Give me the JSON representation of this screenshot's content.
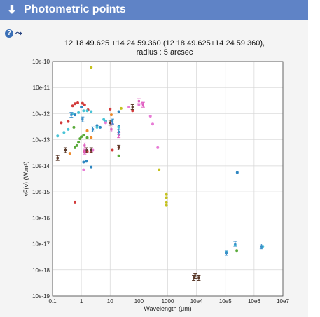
{
  "header": {
    "title": "Photometric points",
    "arrow_icon": "down-arrow-icon"
  },
  "toolbar": {
    "help_icon": "help-icon",
    "graph_icon": "graph-settings-icon"
  },
  "plot": {
    "title_line1": "12 18 49.625 +14 24 59.360 (12 18 49.625+14 24 59.360),",
    "title_line2": "radius : 5 arcsec"
  },
  "chart_data": {
    "type": "scatter",
    "xlabel": "Wavelength (μm)",
    "ylabel": "νF(ν) (W.m²)",
    "x_scale": "log",
    "y_scale": "log",
    "xlim": [
      0.1,
      10000000
    ],
    "ylim": [
      1e-19,
      1e-10
    ],
    "x_tick_labels": [
      "0.1",
      "1",
      "10",
      "100",
      "1000",
      "10e4",
      "10e5",
      "10e6",
      "10e7"
    ],
    "y_tick_labels": [
      "10e-10",
      "10e-11",
      "10e-12",
      "10e-13",
      "10e-14",
      "10e-15",
      "10e-16",
      "10e-17",
      "10e-18",
      "10e-19"
    ],
    "grid": true,
    "series": [
      {
        "color": "#d23b3b",
        "marker": "circle",
        "points": [
          [
            0.2,
            4.5e-13
          ],
          [
            0.35,
            5e-13
          ],
          [
            0.5,
            2e-12
          ],
          [
            0.6,
            2.4e-12
          ],
          [
            0.75,
            2.6e-12
          ],
          [
            0.6,
            4e-16
          ],
          [
            1.1,
            2.5e-12
          ],
          [
            1.3,
            2.2e-12
          ],
          [
            1.7,
            1.4e-12
          ],
          [
            1.3,
            3.5e-14
          ],
          [
            1.6,
            3.5e-14
          ],
          [
            2.2,
            3.5e-14
          ],
          [
            10,
            1.5e-12
          ],
          [
            12,
            4e-14
          ],
          [
            20,
            5e-14
          ],
          [
            60,
            1.3e-12
          ]
        ]
      },
      {
        "color": "#2e86c1",
        "marker": "circle",
        "points": [
          [
            0.6,
            9e-13
          ],
          [
            1.0,
            1.8e-12
          ],
          [
            1.2,
            1.4e-14
          ],
          [
            1.5,
            1.5e-14
          ],
          [
            2.2,
            9e-15
          ],
          [
            3.5,
            3.5e-13
          ],
          [
            4.5,
            3e-13
          ],
          [
            7,
            5.2e-13
          ],
          [
            20,
            3.2e-13
          ],
          [
            20,
            1.2e-12
          ],
          [
            260000,
            5.5e-15
          ]
        ]
      },
      {
        "color": "#48c3d6",
        "marker": "circle",
        "points": [
          [
            0.15,
            1.4e-13
          ],
          [
            0.25,
            1.9e-13
          ],
          [
            0.35,
            2.5e-13
          ],
          [
            0.5,
            1e-12
          ],
          [
            0.8,
            1.1e-12
          ],
          [
            1.2,
            1.3e-12
          ],
          [
            1.6,
            1.3e-12
          ],
          [
            2.2,
            1.2e-12
          ],
          [
            3.5,
            3e-13
          ],
          [
            6,
            6e-13
          ],
          [
            7,
            5e-13
          ],
          [
            20,
            3e-13
          ],
          [
            110000,
            5e-18
          ],
          [
            220000,
            9e-18
          ],
          [
            2000000,
            8e-18
          ]
        ]
      },
      {
        "color": "#5aaa3a",
        "marker": "circle",
        "points": [
          [
            0.55,
            3e-13
          ],
          [
            0.6,
            5e-14
          ],
          [
            0.7,
            6e-14
          ],
          [
            0.8,
            8e-14
          ],
          [
            0.9,
            1.1e-13
          ],
          [
            1.0,
            1.3e-13
          ],
          [
            1.2,
            1.5e-13
          ],
          [
            1.6,
            1.2e-13
          ],
          [
            20,
            2.4e-14
          ],
          [
            250000,
            5.5e-18
          ]
        ]
      },
      {
        "color": "#e87bd6",
        "marker": "circle",
        "points": [
          [
            1.2,
            7e-15
          ],
          [
            2.2,
            4e-14
          ],
          [
            2.5,
            4e-14
          ],
          [
            7,
            4.5e-13
          ],
          [
            12,
            4e-13
          ],
          [
            45,
            1.8e-12
          ],
          [
            100,
            2.2e-12
          ],
          [
            130,
            2.5e-12
          ],
          [
            250,
            8e-13
          ],
          [
            300,
            4e-13
          ],
          [
            450,
            5e-14
          ]
        ]
      },
      {
        "color": "#c5c21e",
        "marker": "circle",
        "points": [
          [
            2.2,
            6e-11
          ],
          [
            500,
            7e-15
          ],
          [
            900,
            8e-16
          ],
          [
            900,
            6e-16
          ],
          [
            900,
            4e-16
          ],
          [
            900,
            3e-16
          ],
          [
            24,
            1.6e-12
          ]
        ]
      },
      {
        "color": "#ee8a2c",
        "marker": "circle",
        "points": [
          [
            0.4,
            3e-14
          ],
          [
            1.6,
            2.2e-13
          ],
          [
            2.2,
            1.2e-13
          ],
          [
            11,
            9e-13
          ]
        ]
      },
      {
        "color": "#5a3a2a",
        "marker": "errorbar",
        "points": [
          [
            0.15,
            2e-14
          ],
          [
            0.28,
            4e-14
          ],
          [
            1.5,
            4e-14
          ],
          [
            2.2,
            4e-14
          ],
          [
            10,
            4.5e-13
          ],
          [
            20,
            5e-14
          ],
          [
            60,
            1.8e-12
          ],
          [
            8000,
            5e-19
          ],
          [
            9000,
            6e-19
          ],
          [
            12000,
            5e-19
          ]
        ]
      },
      {
        "color": "#e060c0",
        "marker": "errorbar",
        "points": [
          [
            1.3,
            6e-14
          ],
          [
            1.3,
            3.5e-14
          ],
          [
            11,
            2.5e-13
          ],
          [
            20,
            1.5e-13
          ],
          [
            100,
            3e-12
          ],
          [
            140,
            2.2e-12
          ]
        ]
      },
      {
        "color": "#3a8fc9",
        "marker": "errorbar",
        "points": [
          [
            0.45,
            9e-13
          ],
          [
            1.1,
            6e-13
          ],
          [
            2.5,
            2.5e-13
          ],
          [
            12,
            5e-13
          ],
          [
            20,
            2e-13
          ],
          [
            110000,
            4.5e-18
          ],
          [
            220000,
            1e-17
          ],
          [
            1800000,
            8e-18
          ]
        ]
      }
    ]
  }
}
